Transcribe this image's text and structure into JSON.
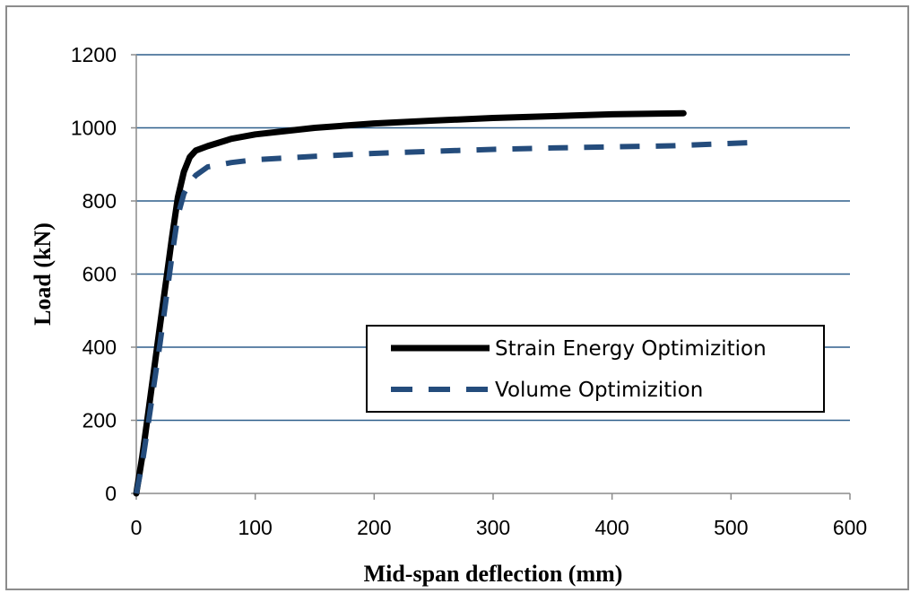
{
  "chart_data": {
    "type": "line",
    "title": "",
    "xlabel": "Mid-span deflection (mm)",
    "ylabel": "Load (kN)",
    "xlim": [
      0,
      600
    ],
    "ylim": [
      0,
      1200
    ],
    "xticks": [
      "0",
      "100",
      "200",
      "300",
      "400",
      "500",
      "600"
    ],
    "yticks": [
      "0",
      "200",
      "400",
      "600",
      "800",
      "1000",
      "1200"
    ],
    "grid": "horizontal",
    "legend_position": "inside-right",
    "series": [
      {
        "name": "Strain Energy Optimizition",
        "color": "#000000",
        "style": "solid",
        "points": [
          [
            0,
            0
          ],
          [
            5,
            100
          ],
          [
            10,
            220
          ],
          [
            15,
            340
          ],
          [
            20,
            460
          ],
          [
            25,
            580
          ],
          [
            30,
            700
          ],
          [
            35,
            810
          ],
          [
            40,
            880
          ],
          [
            45,
            920
          ],
          [
            50,
            938
          ],
          [
            60,
            950
          ],
          [
            80,
            970
          ],
          [
            100,
            982
          ],
          [
            150,
            1000
          ],
          [
            200,
            1012
          ],
          [
            250,
            1020
          ],
          [
            300,
            1027
          ],
          [
            350,
            1032
          ],
          [
            400,
            1037
          ],
          [
            460,
            1040
          ]
        ]
      },
      {
        "name": "Volume Optimizition",
        "color": "#244C7C",
        "style": "dashed",
        "points": [
          [
            0,
            0
          ],
          [
            5,
            80
          ],
          [
            10,
            190
          ],
          [
            15,
            300
          ],
          [
            20,
            410
          ],
          [
            25,
            530
          ],
          [
            30,
            650
          ],
          [
            35,
            760
          ],
          [
            40,
            820
          ],
          [
            45,
            850
          ],
          [
            50,
            870
          ],
          [
            60,
            893
          ],
          [
            80,
            905
          ],
          [
            100,
            913
          ],
          [
            150,
            922
          ],
          [
            200,
            930
          ],
          [
            250,
            936
          ],
          [
            300,
            941
          ],
          [
            350,
            945
          ],
          [
            400,
            948
          ],
          [
            450,
            951
          ],
          [
            520,
            960
          ]
        ]
      }
    ]
  }
}
